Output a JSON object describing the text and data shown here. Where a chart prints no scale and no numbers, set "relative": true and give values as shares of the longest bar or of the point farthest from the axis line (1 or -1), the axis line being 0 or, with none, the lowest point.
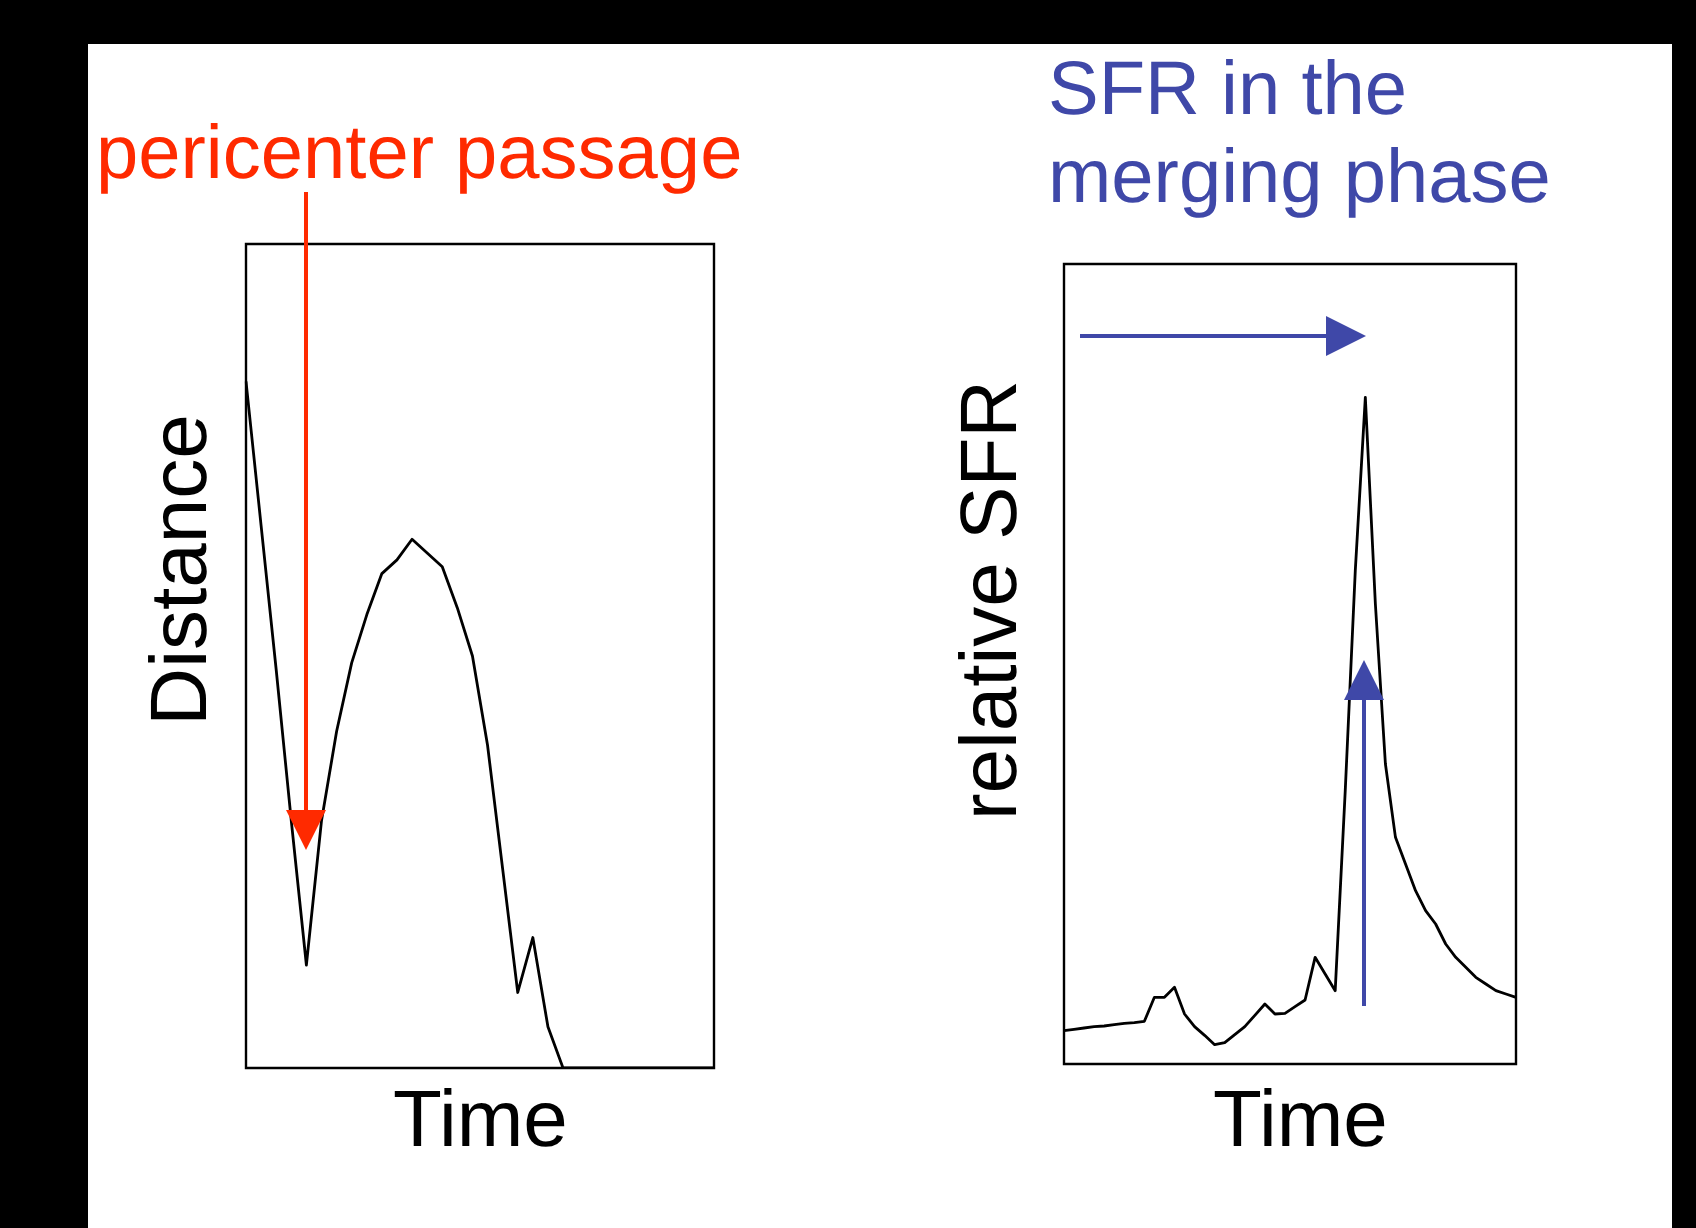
{
  "chart_data": [
    {
      "type": "line",
      "annotations": [
        "pericenter passage"
      ],
      "xlabel": "Time",
      "ylabel": "Distance",
      "relative": true,
      "tick_labels": false,
      "categories": [
        null,
        null,
        null,
        null,
        null,
        null,
        null,
        null,
        null,
        null,
        null,
        null,
        null,
        null,
        null,
        null,
        null,
        null,
        null,
        null,
        null,
        null,
        null,
        null,
        null,
        null,
        null,
        null,
        null,
        null,
        null,
        null
      ],
      "series": [
        {
          "color": "#000000",
          "values": [
            1.0,
            0.79,
            0.58,
            0.36,
            0.15,
            0.36,
            0.49,
            0.59,
            0.66,
            0.72,
            0.74,
            0.77,
            0.75,
            0.73,
            0.67,
            0.6,
            0.47,
            0.29,
            0.11,
            0.19,
            0.06,
            0,
            0,
            0,
            0,
            0,
            0,
            0,
            0,
            0,
            0,
            0
          ]
        }
      ]
    },
    {
      "type": "line",
      "annotations": [
        "SFR in the merging phase"
      ],
      "xlabel": "Time",
      "ylabel": "relative SFR",
      "relative": true,
      "tick_labels": false,
      "categories": [
        null,
        null,
        null,
        null,
        null,
        null,
        null,
        null,
        null,
        null,
        null,
        null,
        null,
        null,
        null,
        null,
        null,
        null,
        null,
        null,
        null,
        null,
        null,
        null,
        null,
        null,
        null,
        null,
        null,
        null,
        null,
        null,
        null,
        null,
        null,
        null,
        null,
        null,
        null,
        null,
        null,
        null,
        null,
        null,
        null,
        null
      ],
      "series": [
        {
          "color": "#000000",
          "values": [
            0.05,
            0.052,
            0.054,
            0.056,
            0.057,
            0.059,
            0.061,
            0.062,
            0.064,
            0.1,
            0.1,
            0.115,
            0.075,
            0.056,
            0.043,
            0.029,
            0.032,
            0.044,
            0.056,
            0.073,
            0.09,
            0.075,
            0.076,
            0.086,
            0.096,
            0.16,
            0.135,
            0.11,
            0.41,
            0.74,
            1.0,
            0.69,
            0.45,
            0.34,
            0.3,
            0.26,
            0.23,
            0.21,
            0.18,
            0.16,
            0.145,
            0.13,
            0.12,
            0.11,
            0.105,
            0.1
          ]
        }
      ]
    }
  ]
}
